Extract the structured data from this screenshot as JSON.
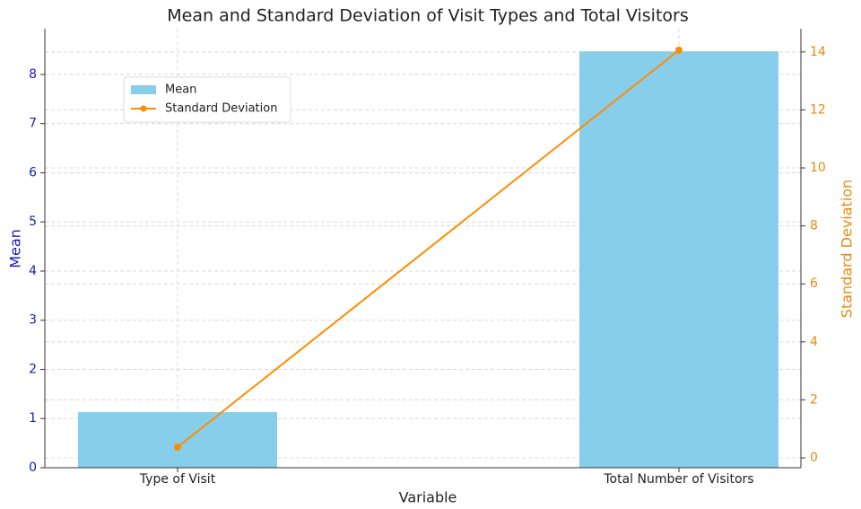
{
  "chart_data": {
    "type": "bar",
    "title": "Mean and Standard Deviation of Visit Types and Total Visitors",
    "x_label": "Variable",
    "y_label": "Mean",
    "y2_label": "Standard Deviation",
    "categories": [
      "Type of Visit",
      "Total Number of Visitors"
    ],
    "series": [
      {
        "name": "Mean",
        "type": "bar",
        "color": "#87ceeb",
        "values": [
          1.13,
          8.47
        ]
      },
      {
        "name": "Standard Deviation",
        "type": "line",
        "axis": "y2",
        "color": "#ff8c00",
        "values": [
          0.37,
          14.06
        ]
      }
    ],
    "ylim": [
      0,
      8.93
    ],
    "yticks": [
      0,
      1,
      2,
      3,
      4,
      5,
      6,
      7,
      8
    ],
    "y2lim": [
      -0.34,
      14.8
    ],
    "y2ticks": [
      0,
      2,
      4,
      6,
      8,
      10,
      12,
      14
    ],
    "grid": true,
    "legend": "upper-left",
    "y_color": "#1c1cb8",
    "y2_color": "#e8890c"
  }
}
